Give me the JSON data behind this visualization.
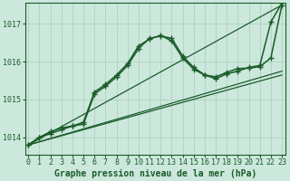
{
  "background_color": "#cce8dc",
  "grid_color": "#aaccbb",
  "line_color": "#1a5c2a",
  "xlabel": "Graphe pression niveau de la mer (hPa)",
  "xlabel_fontsize": 7,
  "tick_fontsize": 6,
  "yticks": [
    1014,
    1015,
    1016,
    1017
  ],
  "xticks": [
    0,
    1,
    2,
    3,
    4,
    5,
    6,
    7,
    8,
    9,
    10,
    11,
    12,
    13,
    14,
    15,
    16,
    17,
    18,
    19,
    20,
    21,
    22,
    23
  ],
  "xlim": [
    -0.3,
    23.3
  ],
  "ylim": [
    1013.55,
    1017.55
  ],
  "series": [
    {
      "x": [
        0,
        23
      ],
      "y": [
        1013.8,
        1015.65
      ],
      "marker": null,
      "linewidth": 0.9
    },
    {
      "x": [
        0,
        23
      ],
      "y": [
        1013.8,
        1015.75
      ],
      "marker": null,
      "linewidth": 0.9
    },
    {
      "x": [
        0,
        23
      ],
      "y": [
        1013.8,
        1017.5
      ],
      "marker": null,
      "linewidth": 0.9
    },
    {
      "x": [
        0,
        1,
        2,
        3,
        4,
        5,
        6,
        7,
        8,
        9,
        10,
        11,
        12,
        13,
        14,
        15,
        16,
        17,
        18,
        19,
        20,
        21,
        22,
        23
      ],
      "y": [
        1013.8,
        1014.0,
        1014.1,
        1014.2,
        1014.3,
        1014.35,
        1015.15,
        1015.35,
        1015.6,
        1015.9,
        1016.35,
        1016.62,
        1016.68,
        1016.62,
        1016.15,
        1015.85,
        1015.65,
        1015.6,
        1015.72,
        1015.82,
        1015.83,
        1015.87,
        1016.1,
        1017.5
      ],
      "marker": "+",
      "markersize": 4,
      "linewidth": 1.1
    },
    {
      "x": [
        0,
        1,
        2,
        3,
        4,
        5,
        6,
        7,
        8,
        9,
        10,
        11,
        12,
        13,
        14,
        15,
        16,
        17,
        18,
        19,
        20,
        21,
        22,
        23
      ],
      "y": [
        1013.8,
        1014.0,
        1014.15,
        1014.25,
        1014.3,
        1014.4,
        1015.2,
        1015.4,
        1015.65,
        1015.95,
        1016.42,
        1016.6,
        1016.7,
        1016.55,
        1016.1,
        1015.8,
        1015.65,
        1015.55,
        1015.68,
        1015.75,
        1015.85,
        1015.9,
        1017.05,
        1017.55
      ],
      "marker": "+",
      "markersize": 4,
      "linewidth": 1.1
    }
  ]
}
